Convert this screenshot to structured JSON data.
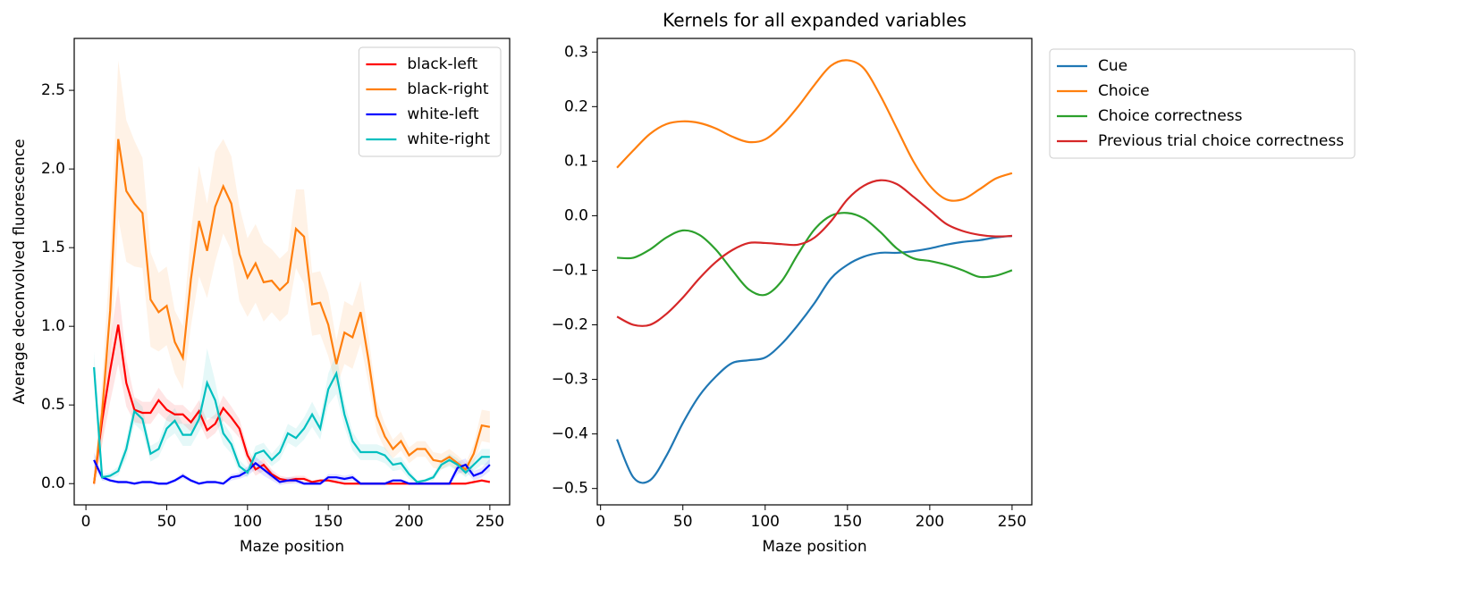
{
  "chart_data": [
    {
      "type": "line",
      "xlabel": "Maze position",
      "ylabel": "Average deconvolved fluorescence",
      "x": [
        5,
        10,
        15,
        20,
        25,
        30,
        35,
        40,
        45,
        50,
        55,
        60,
        65,
        70,
        75,
        80,
        85,
        90,
        95,
        100,
        105,
        110,
        115,
        120,
        125,
        130,
        135,
        140,
        145,
        150,
        155,
        160,
        165,
        170,
        175,
        180,
        185,
        190,
        195,
        200,
        205,
        210,
        215,
        220,
        225,
        230,
        235,
        240,
        245,
        250
      ],
      "xlim": [
        -7.25,
        262.25
      ],
      "ylim": [
        -0.135,
        2.83
      ],
      "xticks": [
        0,
        50,
        100,
        150,
        200,
        250
      ],
      "yticks": [
        {
          "value": 0,
          "label": "0.0"
        },
        0.5,
        {
          "value": 1,
          "label": "1.0"
        },
        1.5,
        {
          "value": 2,
          "label": "2.0"
        },
        2.5
      ],
      "legend": "upper right",
      "series": [
        {
          "name": "black-left",
          "color": "#ff0000",
          "values": [
            0.0,
            0.4,
            0.72,
            1.01,
            0.64,
            0.47,
            0.45,
            0.45,
            0.53,
            0.47,
            0.44,
            0.44,
            0.39,
            0.46,
            0.34,
            0.38,
            0.48,
            0.42,
            0.35,
            0.18,
            0.09,
            0.12,
            0.06,
            0.03,
            0.02,
            0.03,
            0.03,
            0.01,
            0.02,
            0.02,
            0.01,
            0.0,
            0.0,
            0.0,
            0.0,
            0.0,
            0.0,
            0.0,
            0.0,
            0.0,
            0.0,
            0.0,
            0.0,
            0.0,
            0.0,
            0.0,
            0.0,
            0.01,
            0.02,
            0.01
          ],
          "errors": [
            0.02,
            0.15,
            0.2,
            0.25,
            0.15,
            0.08,
            0.07,
            0.07,
            0.08,
            0.07,
            0.06,
            0.06,
            0.06,
            0.07,
            0.06,
            0.06,
            0.08,
            0.07,
            0.06,
            0.05,
            0.04,
            0.04,
            0.03,
            0.02,
            0.02,
            0.02,
            0.02,
            0.01,
            0.01,
            0.01,
            0.01,
            0,
            0,
            0,
            0,
            0,
            0,
            0,
            0,
            0,
            0,
            0,
            0,
            0,
            0,
            0,
            0,
            0.01,
            0.01,
            0.01
          ]
        },
        {
          "name": "black-right",
          "color": "#ff7f0e",
          "values": [
            0.0,
            0.45,
            1.1,
            2.19,
            1.86,
            1.78,
            1.72,
            1.17,
            1.09,
            1.13,
            0.9,
            0.8,
            1.3,
            1.67,
            1.48,
            1.76,
            1.89,
            1.78,
            1.46,
            1.31,
            1.4,
            1.28,
            1.29,
            1.23,
            1.28,
            1.62,
            1.57,
            1.14,
            1.15,
            1.01,
            0.76,
            0.96,
            0.93,
            1.09,
            0.78,
            0.43,
            0.3,
            0.22,
            0.27,
            0.18,
            0.22,
            0.22,
            0.15,
            0.14,
            0.17,
            0.13,
            0.09,
            0.19,
            0.37,
            0.36
          ],
          "errors": [
            0.02,
            0.2,
            0.35,
            0.5,
            0.45,
            0.4,
            0.35,
            0.3,
            0.25,
            0.25,
            0.2,
            0.2,
            0.3,
            0.35,
            0.3,
            0.35,
            0.3,
            0.3,
            0.3,
            0.25,
            0.25,
            0.25,
            0.2,
            0.2,
            0.2,
            0.25,
            0.3,
            0.2,
            0.2,
            0.2,
            0.15,
            0.2,
            0.2,
            0.2,
            0.15,
            0.1,
            0.08,
            0.06,
            0.06,
            0.05,
            0.05,
            0.05,
            0.05,
            0.05,
            0.05,
            0.05,
            0.04,
            0.06,
            0.1,
            0.1
          ]
        },
        {
          "name": "white-left",
          "color": "#0000ff",
          "values": [
            0.15,
            0.04,
            0.02,
            0.01,
            0.01,
            0.0,
            0.01,
            0.01,
            0.0,
            0.0,
            0.02,
            0.05,
            0.02,
            0.0,
            0.01,
            0.01,
            0.0,
            0.04,
            0.05,
            0.08,
            0.13,
            0.09,
            0.05,
            0.01,
            0.02,
            0.02,
            0.0,
            0.0,
            0.0,
            0.04,
            0.04,
            0.03,
            0.04,
            0.0,
            0.0,
            0.0,
            0.0,
            0.02,
            0.02,
            0.0,
            0.0,
            0.0,
            0.0,
            0.0,
            0.0,
            0.1,
            0.12,
            0.05,
            0.07,
            0.12
          ],
          "errors": [
            0.05,
            0.02,
            0.01,
            0.01,
            0.01,
            0.01,
            0.01,
            0.01,
            0.01,
            0.01,
            0.01,
            0.02,
            0.01,
            0.01,
            0.01,
            0.01,
            0.01,
            0.02,
            0.02,
            0.03,
            0.04,
            0.04,
            0.03,
            0.02,
            0.02,
            0.02,
            0.01,
            0.01,
            0.01,
            0.02,
            0.02,
            0.02,
            0.02,
            0.01,
            0.01,
            0.01,
            0.01,
            0.01,
            0.01,
            0.01,
            0.01,
            0.01,
            0.01,
            0.01,
            0.01,
            0.04,
            0.04,
            0.03,
            0.03,
            0.04
          ]
        },
        {
          "name": "white-right",
          "color": "#00bfbf",
          "values": [
            0.74,
            0.04,
            0.05,
            0.08,
            0.22,
            0.46,
            0.41,
            0.19,
            0.22,
            0.35,
            0.4,
            0.31,
            0.31,
            0.41,
            0.64,
            0.53,
            0.32,
            0.25,
            0.11,
            0.07,
            0.19,
            0.21,
            0.15,
            0.2,
            0.32,
            0.29,
            0.35,
            0.44,
            0.35,
            0.6,
            0.7,
            0.44,
            0.27,
            0.2,
            0.2,
            0.2,
            0.18,
            0.12,
            0.13,
            0.06,
            0.01,
            0.02,
            0.04,
            0.12,
            0.15,
            0.12,
            0.07,
            0.12,
            0.17,
            0.17
          ],
          "errors": [
            0.1,
            0.02,
            0.02,
            0.03,
            0.06,
            0.08,
            0.08,
            0.05,
            0.05,
            0.07,
            0.08,
            0.07,
            0.07,
            0.08,
            0.22,
            0.12,
            0.07,
            0.06,
            0.04,
            0.03,
            0.05,
            0.05,
            0.04,
            0.05,
            0.06,
            0.06,
            0.07,
            0.08,
            0.07,
            0.1,
            0.13,
            0.08,
            0.06,
            0.05,
            0.05,
            0.05,
            0.05,
            0.04,
            0.04,
            0.03,
            0.01,
            0.01,
            0.02,
            0.03,
            0.04,
            0.04,
            0.03,
            0.04,
            0.05,
            0.05
          ]
        }
      ]
    },
    {
      "type": "line",
      "title": "Kernels for all expanded variables",
      "xlabel": "Maze position",
      "x": [
        10,
        20,
        30,
        40,
        50,
        60,
        70,
        80,
        90,
        100,
        110,
        120,
        130,
        140,
        150,
        160,
        170,
        180,
        190,
        200,
        210,
        220,
        230,
        240,
        250
      ],
      "xlim": [
        -2,
        262
      ],
      "ylim": [
        -0.53,
        0.325
      ],
      "xticks": [
        0,
        50,
        100,
        150,
        200,
        250
      ],
      "yticks": [
        {
          "value": -0.5,
          "label": "−0.5"
        },
        {
          "value": -0.4,
          "label": "−0.4"
        },
        {
          "value": -0.3,
          "label": "−0.3"
        },
        {
          "value": -0.2,
          "label": "−0.2"
        },
        {
          "value": -0.1,
          "label": "−0.1"
        },
        {
          "value": 0,
          "label": "0.0"
        },
        0.1,
        0.2,
        0.3
      ],
      "legend": "outside upper left",
      "series": [
        {
          "name": "Cue",
          "color": "#1f77b4",
          "values": [
            -0.41,
            -0.48,
            -0.485,
            -0.44,
            -0.38,
            -0.33,
            -0.295,
            -0.27,
            -0.265,
            -0.26,
            -0.235,
            -0.2,
            -0.16,
            -0.115,
            -0.09,
            -0.075,
            -0.068,
            -0.068,
            -0.065,
            -0.06,
            -0.053,
            -0.048,
            -0.045,
            -0.04,
            -0.037
          ]
        },
        {
          "name": "Choice",
          "color": "#ff7f0e",
          "values": [
            0.088,
            0.12,
            0.15,
            0.168,
            0.173,
            0.17,
            0.16,
            0.145,
            0.135,
            0.14,
            0.165,
            0.2,
            0.24,
            0.275,
            0.285,
            0.27,
            0.22,
            0.16,
            0.1,
            0.055,
            0.03,
            0.03,
            0.048,
            0.068,
            0.078
          ]
        },
        {
          "name": "Choice correctness",
          "color": "#2ca02c",
          "values": [
            -0.077,
            -0.077,
            -0.062,
            -0.04,
            -0.027,
            -0.035,
            -0.062,
            -0.1,
            -0.135,
            -0.145,
            -0.12,
            -0.07,
            -0.025,
            0.0,
            0.005,
            -0.005,
            -0.03,
            -0.06,
            -0.078,
            -0.083,
            -0.09,
            -0.1,
            -0.112,
            -0.11,
            -0.1
          ]
        },
        {
          "name": "Previous trial choice correctness",
          "color": "#d62728",
          "values": [
            -0.185,
            -0.2,
            -0.2,
            -0.18,
            -0.15,
            -0.115,
            -0.085,
            -0.063,
            -0.05,
            -0.05,
            -0.052,
            -0.053,
            -0.04,
            -0.01,
            0.03,
            0.055,
            0.065,
            0.058,
            0.035,
            0.01,
            -0.015,
            -0.028,
            -0.035,
            -0.038,
            -0.037
          ]
        }
      ]
    }
  ]
}
